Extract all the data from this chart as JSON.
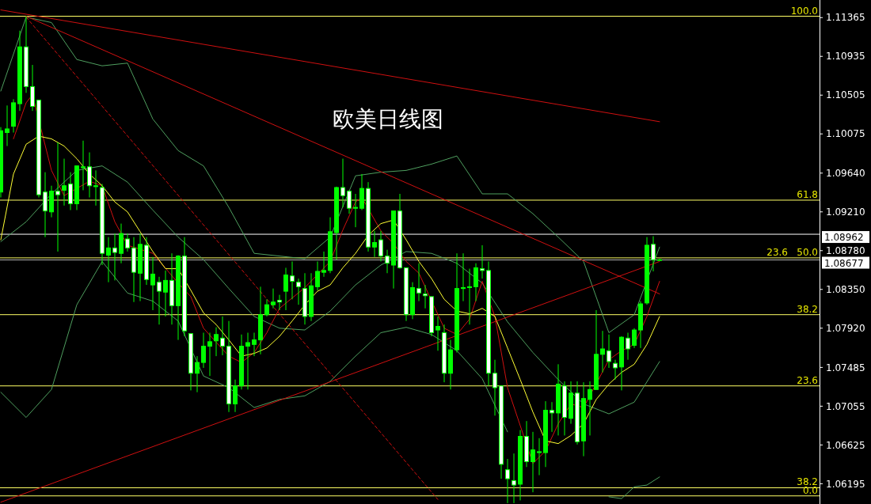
{
  "chart_data": {
    "type": "candlestick",
    "title": "欧美日线图",
    "color": "#00ff00",
    "tick_labels": "y",
    "ylim": [
      1.0597,
      1.1156
    ],
    "yticks": [
      {
        "value": 1.11365,
        "label": "1.11365"
      },
      {
        "value": 1.10935,
        "label": "1.10935"
      },
      {
        "value": 1.10505,
        "label": "1.10505"
      },
      {
        "value": 1.10075,
        "label": "1.10075"
      },
      {
        "value": 1.0964,
        "label": "1.09640"
      },
      {
        "value": 1.0921,
        "label": "1.09210"
      },
      {
        "value": 1.0878,
        "label": "1.08780"
      },
      {
        "value": 1.0835,
        "label": "1.08350"
      },
      {
        "value": 1.0792,
        "label": "1.07920"
      },
      {
        "value": 1.07485,
        "label": "1.07485"
      },
      {
        "value": 1.07055,
        "label": "1.07055"
      },
      {
        "value": 1.06625,
        "label": "1.06625"
      },
      {
        "value": 1.06195,
        "label": "1.06195"
      }
    ],
    "categories": [
      null,
      null,
      null,
      null,
      null,
      null,
      null,
      null,
      null,
      null,
      null,
      null,
      null,
      null,
      null,
      null,
      null,
      null,
      null,
      null,
      null,
      null,
      null,
      null,
      null,
      null,
      null,
      null,
      null,
      null,
      null,
      null,
      null,
      null,
      null,
      null,
      null,
      null,
      null,
      null,
      null,
      null,
      null,
      null,
      null,
      null,
      null,
      null,
      null,
      null,
      null,
      null,
      null,
      null,
      null,
      null,
      null,
      null,
      null,
      null,
      null,
      null,
      null,
      null,
      null,
      null,
      null,
      null,
      null,
      null,
      null,
      null,
      null,
      null,
      null,
      null,
      null,
      null,
      null,
      null,
      null,
      null,
      null,
      null,
      null,
      null,
      null,
      null,
      null,
      null,
      null,
      null,
      null,
      null,
      null,
      null,
      null,
      null,
      null,
      null,
      null,
      null,
      null,
      null,
      null
    ],
    "ohlc": [
      [
        1.0943,
        1.1015,
        1.0937,
        1.1011
      ],
      [
        1.1009,
        1.1039,
        1.0994,
        1.1013
      ],
      [
        1.1016,
        1.1046,
        1.1009,
        1.1042
      ],
      [
        1.1041,
        1.1122,
        1.1033,
        1.1104
      ],
      [
        1.1104,
        1.1138,
        1.1053,
        1.106
      ],
      [
        1.106,
        1.1084,
        1.1033,
        1.1038
      ],
      [
        1.1045,
        1.1045,
        1.0937,
        1.094
      ],
      [
        1.0943,
        1.0965,
        1.0893,
        1.0922
      ],
      [
        1.0921,
        1.095,
        1.0915,
        1.0944
      ],
      [
        1.0944,
        1.0998,
        1.0877,
        1.094
      ],
      [
        1.0945,
        1.098,
        1.0928,
        1.095
      ],
      [
        1.0952,
        1.0965,
        1.0923,
        1.093
      ],
      [
        1.093,
        1.0972,
        1.0923,
        1.0972
      ],
      [
        1.097,
        1.1,
        1.0945,
        1.0971
      ],
      [
        1.0971,
        1.0987,
        1.0937,
        1.095
      ],
      [
        1.0949,
        1.0967,
        1.0928,
        1.095
      ],
      [
        1.0948,
        1.0952,
        1.0862,
        1.0875
      ],
      [
        1.0873,
        1.0893,
        1.0843,
        1.0881
      ],
      [
        1.0881,
        1.0897,
        1.0845,
        1.0876
      ],
      [
        1.0875,
        1.0908,
        1.0864,
        1.0897
      ],
      [
        1.0891,
        1.0897,
        1.0877,
        1.0881
      ],
      [
        1.0881,
        1.0893,
        1.0821,
        1.0854
      ],
      [
        1.0853,
        1.0897,
        1.0822,
        1.0885
      ],
      [
        1.0884,
        1.0893,
        1.084,
        1.0846
      ],
      [
        1.084,
        1.0871,
        1.0812,
        1.0852
      ],
      [
        1.0843,
        1.0849,
        1.0796,
        1.0833
      ],
      [
        1.0832,
        1.0856,
        1.0805,
        1.0845
      ],
      [
        1.0845,
        1.0875,
        1.0796,
        1.0817
      ],
      [
        1.0817,
        1.0873,
        1.0779,
        1.0872
      ],
      [
        1.0872,
        1.0893,
        1.0783,
        1.0789
      ],
      [
        1.0786,
        1.0786,
        1.0723,
        1.0742
      ],
      [
        1.0742,
        1.0761,
        1.0721,
        1.0754
      ],
      [
        1.0754,
        1.0787,
        1.0748,
        1.0772
      ],
      [
        1.0772,
        1.0787,
        1.0739,
        1.0777
      ],
      [
        1.0778,
        1.0793,
        1.0761,
        1.0785
      ],
      [
        1.0781,
        1.0805,
        1.0762,
        1.0772
      ],
      [
        1.0772,
        1.08,
        1.0699,
        1.0708
      ],
      [
        1.0708,
        1.0735,
        1.0699,
        1.0728
      ],
      [
        1.0728,
        1.0785,
        1.0724,
        1.0772
      ],
      [
        1.0772,
        1.0787,
        1.0724,
        1.0776
      ],
      [
        1.0774,
        1.0787,
        1.0761,
        1.0779
      ],
      [
        1.0779,
        1.0838,
        1.0763,
        1.0807
      ],
      [
        1.0807,
        1.0824,
        1.0805,
        1.0818
      ],
      [
        1.0818,
        1.0836,
        1.0814,
        1.0821
      ],
      [
        1.0823,
        1.0829,
        1.0812,
        1.0821
      ],
      [
        1.0833,
        1.0859,
        1.0812,
        1.0851
      ],
      [
        1.085,
        1.0866,
        1.0824,
        1.0844
      ],
      [
        1.0843,
        1.0847,
        1.0818,
        1.0838
      ],
      [
        1.0836,
        1.0853,
        1.0796,
        1.0805
      ],
      [
        1.0805,
        1.0853,
        1.08,
        1.0839
      ],
      [
        1.0838,
        1.0866,
        1.0834,
        1.0855
      ],
      [
        1.0854,
        1.0877,
        1.0849,
        1.0856
      ],
      [
        1.0856,
        1.0915,
        1.0853,
        1.0899
      ],
      [
        1.0898,
        1.0949,
        1.0868,
        1.0948
      ],
      [
        1.0948,
        1.098,
        1.0926,
        1.0939
      ],
      [
        1.0944,
        1.0945,
        1.0919,
        1.0925
      ],
      [
        1.0925,
        1.0941,
        1.0904,
        1.0926
      ],
      [
        1.0925,
        1.0963,
        1.0923,
        1.0947
      ],
      [
        1.0947,
        1.0954,
        1.0877,
        1.0882
      ],
      [
        1.0882,
        1.09,
        1.0871,
        1.0887
      ],
      [
        1.089,
        1.09,
        1.0866,
        1.0872
      ],
      [
        1.0872,
        1.0879,
        1.0853,
        1.0864
      ],
      [
        1.0862,
        1.0922,
        1.0836,
        1.0922
      ],
      [
        1.0922,
        1.0941,
        1.0858,
        1.0859
      ],
      [
        1.0859,
        1.0859,
        1.08,
        1.0807
      ],
      [
        1.0807,
        1.0843,
        1.0802,
        1.0837
      ],
      [
        1.0836,
        1.0864,
        1.0822,
        1.0831
      ],
      [
        1.083,
        1.084,
        1.0814,
        1.0828
      ],
      [
        1.0827,
        1.0827,
        1.0783,
        1.0787
      ],
      [
        1.079,
        1.0805,
        1.0767,
        1.0794
      ],
      [
        1.0787,
        1.0796,
        1.0732,
        1.0742
      ],
      [
        1.0742,
        1.0779,
        1.0724,
        1.0768
      ],
      [
        1.0768,
        1.0875,
        1.0765,
        1.0836
      ],
      [
        1.0836,
        1.0875,
        1.0822,
        1.0837
      ],
      [
        1.0837,
        1.0858,
        1.0796,
        1.0838
      ],
      [
        1.0838,
        1.0864,
        1.0822,
        1.0859
      ],
      [
        1.0858,
        1.0884,
        1.0847,
        1.0856
      ],
      [
        1.0856,
        1.0866,
        1.0728,
        1.0742
      ],
      [
        1.0742,
        1.0757,
        1.0695,
        1.0726
      ],
      [
        1.0728,
        1.0728,
        1.0625,
        1.0641
      ],
      [
        1.0635,
        1.0647,
        1.0598,
        1.0625
      ],
      [
        1.0623,
        1.0653,
        1.0598,
        1.0618
      ],
      [
        1.0619,
        1.0679,
        1.0601,
        1.0672
      ],
      [
        1.0672,
        1.0689,
        1.0638,
        1.0644
      ],
      [
        1.0644,
        1.0677,
        1.061,
        1.0657
      ],
      [
        1.0654,
        1.067,
        1.0629,
        1.0655
      ],
      [
        1.0654,
        1.0711,
        1.0638,
        1.0701
      ],
      [
        1.0701,
        1.071,
        1.0677,
        1.0698
      ],
      [
        1.0698,
        1.0752,
        1.0673,
        1.073
      ],
      [
        1.0728,
        1.0733,
        1.0673,
        1.0693
      ],
      [
        1.0692,
        1.0733,
        1.0686,
        1.072
      ],
      [
        1.072,
        1.0733,
        1.0663,
        1.0666
      ],
      [
        1.0667,
        1.0732,
        1.065,
        1.0714
      ],
      [
        1.0713,
        1.0733,
        1.0673,
        1.0724
      ],
      [
        1.0724,
        1.0812,
        1.0724,
        1.0763
      ],
      [
        1.0763,
        1.0789,
        1.0743,
        1.0769
      ],
      [
        1.0767,
        1.0785,
        1.0748,
        1.0755
      ],
      [
        1.0753,
        1.0757,
        1.0735,
        1.0748
      ],
      [
        1.0749,
        1.0783,
        1.0723,
        1.0782
      ],
      [
        1.0781,
        1.0787,
        1.0757,
        1.0769
      ],
      [
        1.0773,
        1.0792,
        1.077,
        1.079
      ],
      [
        1.079,
        1.0822,
        1.077,
        1.0819
      ],
      [
        1.082,
        1.0893,
        1.0818,
        1.0884
      ],
      [
        1.0885,
        1.0894,
        1.0855,
        1.0868
      ],
      [
        1.0868,
        1.0869,
        1.0867,
        1.0868
      ]
    ],
    "series": [
      {
        "type": "line",
        "color": "#4f9f5f",
        "values": [
          1.1055,
          null,
          null,
          null,
          1.1137,
          null,
          null,
          null,
          1.1131,
          null,
          null,
          null,
          1.109,
          null,
          null,
          null,
          1.1083,
          null,
          null,
          null,
          1.1086,
          null,
          null,
          null,
          1.1024,
          null,
          null,
          null,
          1.0989,
          null,
          null,
          null,
          1.0972,
          null,
          null,
          null,
          1.0926,
          null,
          null,
          null,
          1.0875,
          null,
          null,
          null,
          1.0872,
          null,
          null,
          null,
          1.0869,
          null,
          null,
          null,
          1.0893,
          null,
          null,
          null,
          1.0961,
          null,
          null,
          null,
          1.0965,
          null,
          null,
          null,
          1.0967,
          null,
          null,
          null,
          1.0974,
          null,
          null,
          null,
          1.0983,
          null,
          null,
          null,
          1.0941,
          null,
          null,
          null,
          1.0941,
          null,
          null,
          null,
          1.0919,
          null,
          null,
          null,
          1.0893,
          null,
          null,
          null,
          1.0866,
          null,
          null,
          null,
          1.0787,
          null,
          null,
          null,
          1.0807,
          null,
          null,
          null,
          1.0882
        ]
      },
      {
        "type": "line",
        "color": "#4f9f5f",
        "values": [
          1.0888,
          null,
          null,
          null,
          1.091,
          null,
          null,
          null,
          1.0941,
          null,
          null,
          null,
          1.0967,
          null,
          null,
          null,
          1.0972,
          null,
          null,
          null,
          1.0954,
          null,
          null,
          null,
          1.0923,
          null,
          null,
          null,
          1.0893,
          null,
          null,
          null,
          1.0868,
          null,
          null,
          null,
          1.0836,
          null,
          null,
          null,
          1.0805,
          null,
          null,
          null,
          1.0792,
          null,
          null,
          null,
          1.079,
          null,
          null,
          null,
          1.0811,
          null,
          null,
          null,
          1.084,
          null,
          null,
          null,
          1.0862,
          null,
          null,
          null,
          1.0877,
          null,
          null,
          null,
          1.0875,
          null,
          null,
          null,
          1.0864,
          null,
          null,
          null,
          1.0842,
          null,
          null,
          null,
          1.0799,
          null,
          null,
          null,
          1.0765,
          null,
          null,
          null,
          1.0735,
          null,
          null,
          null,
          1.0708,
          null,
          null,
          null,
          1.0697,
          null,
          null,
          null,
          1.071,
          null,
          null,
          null,
          1.0755
        ]
      },
      {
        "type": "line",
        "color": "#4f9f5f",
        "values": [
          1.0721,
          null,
          null,
          null,
          1.0693,
          null,
          null,
          null,
          1.0724,
          null,
          null,
          null,
          1.0818,
          null,
          null,
          null,
          1.0866,
          null,
          null,
          null,
          1.0831,
          null,
          null,
          null,
          1.0822,
          null,
          null,
          null,
          1.08,
          null,
          null,
          null,
          1.0739,
          null,
          null,
          null,
          1.0726,
          null,
          null,
          null,
          1.0704,
          null,
          null,
          null,
          1.0713,
          null,
          null,
          null,
          1.0717,
          null,
          null,
          null,
          1.0733,
          null,
          null,
          null,
          1.0761,
          null,
          null,
          null,
          1.0787,
          null,
          null,
          null,
          1.0793,
          null,
          null,
          null,
          1.0785,
          null,
          null,
          null,
          1.0767,
          null,
          null,
          null,
          1.0736,
          null,
          null,
          null,
          1.0677,
          null,
          null,
          null,
          null,
          null,
          null,
          null,
          null,
          null,
          null,
          null,
          null,
          null,
          null,
          null,
          null,
          null,
          null,
          null,
          null,
          null,
          null,
          null,
          null
        ]
      },
      {
        "type": "line",
        "color": "#4f9f5f",
        "values": [
          null,
          null,
          null,
          null,
          null,
          null,
          null,
          null,
          null,
          null,
          null,
          null,
          null,
          null,
          null,
          null,
          null,
          null,
          null,
          null,
          null,
          null,
          null,
          null,
          null,
          null,
          null,
          null,
          null,
          null,
          null,
          null,
          null,
          null,
          null,
          null,
          null,
          null,
          null,
          null,
          null,
          null,
          null,
          null,
          null,
          null,
          null,
          null,
          null,
          null,
          null,
          null,
          null,
          null,
          null,
          null,
          null,
          null,
          null,
          null,
          null,
          null,
          null,
          null,
          null,
          null,
          null,
          null,
          null,
          null,
          null,
          null,
          null,
          null,
          null,
          null,
          null,
          null,
          null,
          null,
          null,
          null,
          null,
          null,
          null,
          null,
          null,
          null,
          null,
          null,
          null,
          null,
          null,
          null,
          null,
          null,
          1.0605,
          null,
          1.0603,
          null,
          1.0616,
          null,
          1.0618,
          null,
          1.0627
        ]
      },
      {
        "type": "line",
        "color": "#d01010",
        "values": [
          null,
          null,
          1.1002,
          null,
          1.1042,
          1.1051,
          null,
          null,
          1.0967,
          null,
          1.0939,
          null,
          1.0947,
          null,
          1.0955,
          null,
          1.095,
          null,
          1.091,
          null,
          1.0884,
          null,
          null,
          null,
          1.0875,
          null,
          null,
          null,
          1.0842,
          null,
          1.0827,
          null,
          1.0792,
          null,
          null,
          null,
          1.0761,
          null,
          1.0754,
          null,
          1.0765,
          null,
          1.0787,
          null,
          1.0814,
          null,
          null,
          null,
          1.0837,
          null,
          null,
          null,
          1.0866,
          null,
          1.0901,
          null,
          1.0932,
          1.0937,
          null,
          null,
          1.09,
          null,
          1.0886,
          null,
          1.0866,
          null,
          1.0853,
          null,
          null,
          null,
          1.0792,
          null,
          1.0785,
          null,
          1.0802,
          null,
          1.0844,
          null,
          1.0805,
          null,
          1.0726,
          null,
          null,
          null,
          1.0642,
          null,
          1.0656,
          null,
          1.0686,
          null,
          1.0708,
          null,
          1.0704,
          null,
          null,
          null,
          1.0757,
          null,
          1.0767,
          null,
          1.0774,
          null,
          1.0805,
          null,
          1.0844
        ]
      },
      {
        "type": "line",
        "color": "#ffff33",
        "values": [
          1.089,
          null,
          1.0963,
          null,
          1.0996,
          null,
          1.1005,
          null,
          1.1002,
          null,
          1.0994,
          null,
          1.098,
          null,
          1.0963,
          null,
          1.095,
          null,
          1.0932,
          null,
          1.0921,
          null,
          1.0899,
          null,
          1.0877,
          null,
          1.0858,
          null,
          1.0858,
          null,
          1.0834,
          null,
          1.0809,
          null,
          1.0796,
          null,
          1.0779,
          null,
          1.0761,
          null,
          1.0764,
          null,
          1.077,
          null,
          1.0783,
          null,
          1.08,
          null,
          1.0818,
          null,
          1.0833,
          null,
          1.084,
          null,
          1.0859,
          null,
          1.0875,
          null,
          1.0895,
          null,
          1.0908,
          null,
          1.0912,
          null,
          1.089,
          null,
          1.0866,
          null,
          1.0847,
          null,
          1.0824,
          null,
          1.0811,
          null,
          1.0808,
          null,
          1.0814,
          null,
          1.0805,
          null,
          1.077,
          null,
          1.0735,
          null,
          1.0699,
          null,
          1.0667,
          null,
          1.0664,
          null,
          1.0673,
          null,
          1.0686,
          null,
          1.0713,
          null,
          1.073,
          null,
          1.0743,
          null,
          1.0752,
          null,
          1.0774,
          null,
          1.0805
        ]
      },
      {
        "type": "line",
        "color": "#d01010",
        "values": [
          1.1145,
          null,
          null,
          null,
          null,
          null,
          null,
          null,
          null,
          null,
          null,
          null,
          null,
          null,
          null,
          null,
          null,
          null,
          null,
          null,
          null,
          null,
          null,
          null,
          null,
          null,
          null,
          null,
          null,
          null,
          null,
          null,
          null,
          null,
          null,
          null,
          null,
          null,
          null,
          null,
          null,
          null,
          null,
          null,
          null,
          null,
          null,
          null,
          null,
          null,
          null,
          null,
          null,
          null,
          null,
          null,
          null,
          null,
          null,
          null,
          null,
          null,
          null,
          null,
          null,
          null,
          null,
          null,
          null,
          null,
          null,
          null,
          null,
          null,
          null,
          null,
          null,
          null,
          null,
          null,
          null,
          null,
          null,
          null,
          null,
          null,
          null,
          null,
          null,
          null,
          null,
          null,
          null,
          null,
          null,
          null,
          null,
          null,
          null,
          null,
          null,
          null,
          null,
          null,
          1.1021
        ]
      },
      {
        "type": "line",
        "color": "#d01010",
        "values": [
          null,
          null,
          null,
          null,
          1.1138,
          null,
          null,
          null,
          null,
          null,
          null,
          null,
          null,
          null,
          null,
          null,
          null,
          null,
          null,
          null,
          null,
          null,
          null,
          null,
          null,
          null,
          null,
          null,
          null,
          null,
          null,
          null,
          null,
          null,
          null,
          null,
          null,
          null,
          null,
          null,
          null,
          null,
          null,
          null,
          null,
          null,
          null,
          null,
          null,
          null,
          null,
          null,
          null,
          null,
          null,
          null,
          null,
          null,
          null,
          null,
          null,
          null,
          null,
          null,
          null,
          null,
          null,
          null,
          null,
          null,
          null,
          null,
          null,
          null,
          null,
          null,
          null,
          null,
          null,
          null,
          null,
          null,
          null,
          null,
          null,
          null,
          null,
          null,
          null,
          null,
          null,
          null,
          null,
          null,
          null,
          null,
          null,
          null,
          null,
          null,
          null,
          null,
          null,
          null,
          1.083
        ]
      },
      {
        "type": "line",
        "color": "#d01010",
        "values": [
          1.0599,
          null,
          null,
          null,
          null,
          null,
          null,
          null,
          null,
          null,
          null,
          null,
          null,
          null,
          null,
          null,
          null,
          null,
          null,
          null,
          null,
          null,
          null,
          null,
          null,
          null,
          null,
          null,
          null,
          null,
          null,
          null,
          null,
          null,
          null,
          null,
          null,
          null,
          null,
          null,
          null,
          null,
          null,
          null,
          null,
          null,
          null,
          null,
          null,
          null,
          null,
          null,
          null,
          null,
          null,
          null,
          null,
          null,
          null,
          null,
          null,
          null,
          null,
          null,
          null,
          null,
          null,
          null,
          null,
          null,
          null,
          null,
          null,
          null,
          null,
          null,
          null,
          null,
          null,
          null,
          null,
          null,
          null,
          null,
          null,
          null,
          null,
          null,
          null,
          null,
          null,
          null,
          null,
          null,
          null,
          null,
          null,
          null,
          null,
          null,
          null,
          null,
          null,
          null,
          1.0866
        ]
      },
      {
        "type": "line",
        "color": "#d01010",
        "line_style": "dashed",
        "values": [
          null,
          null,
          null,
          null,
          1.1137,
          null,
          null,
          null,
          null,
          null,
          null,
          null,
          null,
          null,
          null,
          null,
          null,
          null,
          null,
          null,
          null,
          null,
          null,
          null,
          null,
          null,
          null,
          null,
          null,
          null,
          null,
          null,
          null,
          null,
          null,
          null,
          null,
          null,
          null,
          null,
          null,
          null,
          null,
          null,
          null,
          null,
          null,
          null,
          null,
          null,
          null,
          null,
          null,
          null,
          null,
          null,
          null,
          null,
          null,
          null,
          null,
          null,
          null,
          null,
          null,
          null,
          null,
          null,
          null,
          1.0602,
          null,
          null,
          null,
          null,
          null,
          null,
          null,
          null,
          null,
          null,
          null,
          null,
          null,
          null,
          null,
          null,
          null,
          null,
          null,
          null,
          null,
          null,
          null,
          null,
          null,
          null,
          null,
          null,
          null,
          null,
          null,
          null,
          null,
          null,
          null
        ]
      }
    ],
    "ref_lines": [
      {
        "axis": "y",
        "value": 1.1138,
        "color": "#ffff66"
      },
      {
        "axis": "y",
        "value": 1.0934,
        "color": "#ffff66"
      },
      {
        "axis": "y",
        "value": 1.087,
        "color": "#ffff66"
      },
      {
        "axis": "y",
        "value": 1.0807,
        "color": "#ffff66"
      },
      {
        "axis": "y",
        "value": 1.0728,
        "color": "#ffff66"
      },
      {
        "axis": "y",
        "value": 1.0615,
        "color": "#ffff66"
      },
      {
        "axis": "y",
        "value": 1.0606,
        "color": "#ffff66"
      },
      {
        "axis": "y",
        "value": 1.08962,
        "label": "1.08962",
        "color": "#ffffff"
      },
      {
        "axis": "y",
        "value": 1.08677,
        "label": "1.08677",
        "color": "#b0b0b0"
      }
    ],
    "annotations": [
      {
        "text": "100.0",
        "y": 1.1138
      },
      {
        "text": "61.8",
        "y": 1.0934
      },
      {
        "text": "50.0",
        "y": 1.087
      },
      {
        "text": "23.6",
        "y": 1.087
      },
      {
        "text": "38.2",
        "y": 1.0807
      },
      {
        "text": "23.6",
        "y": 1.0728
      },
      {
        "text": "38.2",
        "y": 1.0615
      },
      {
        "text": "0.0",
        "y": 1.0606
      }
    ]
  }
}
